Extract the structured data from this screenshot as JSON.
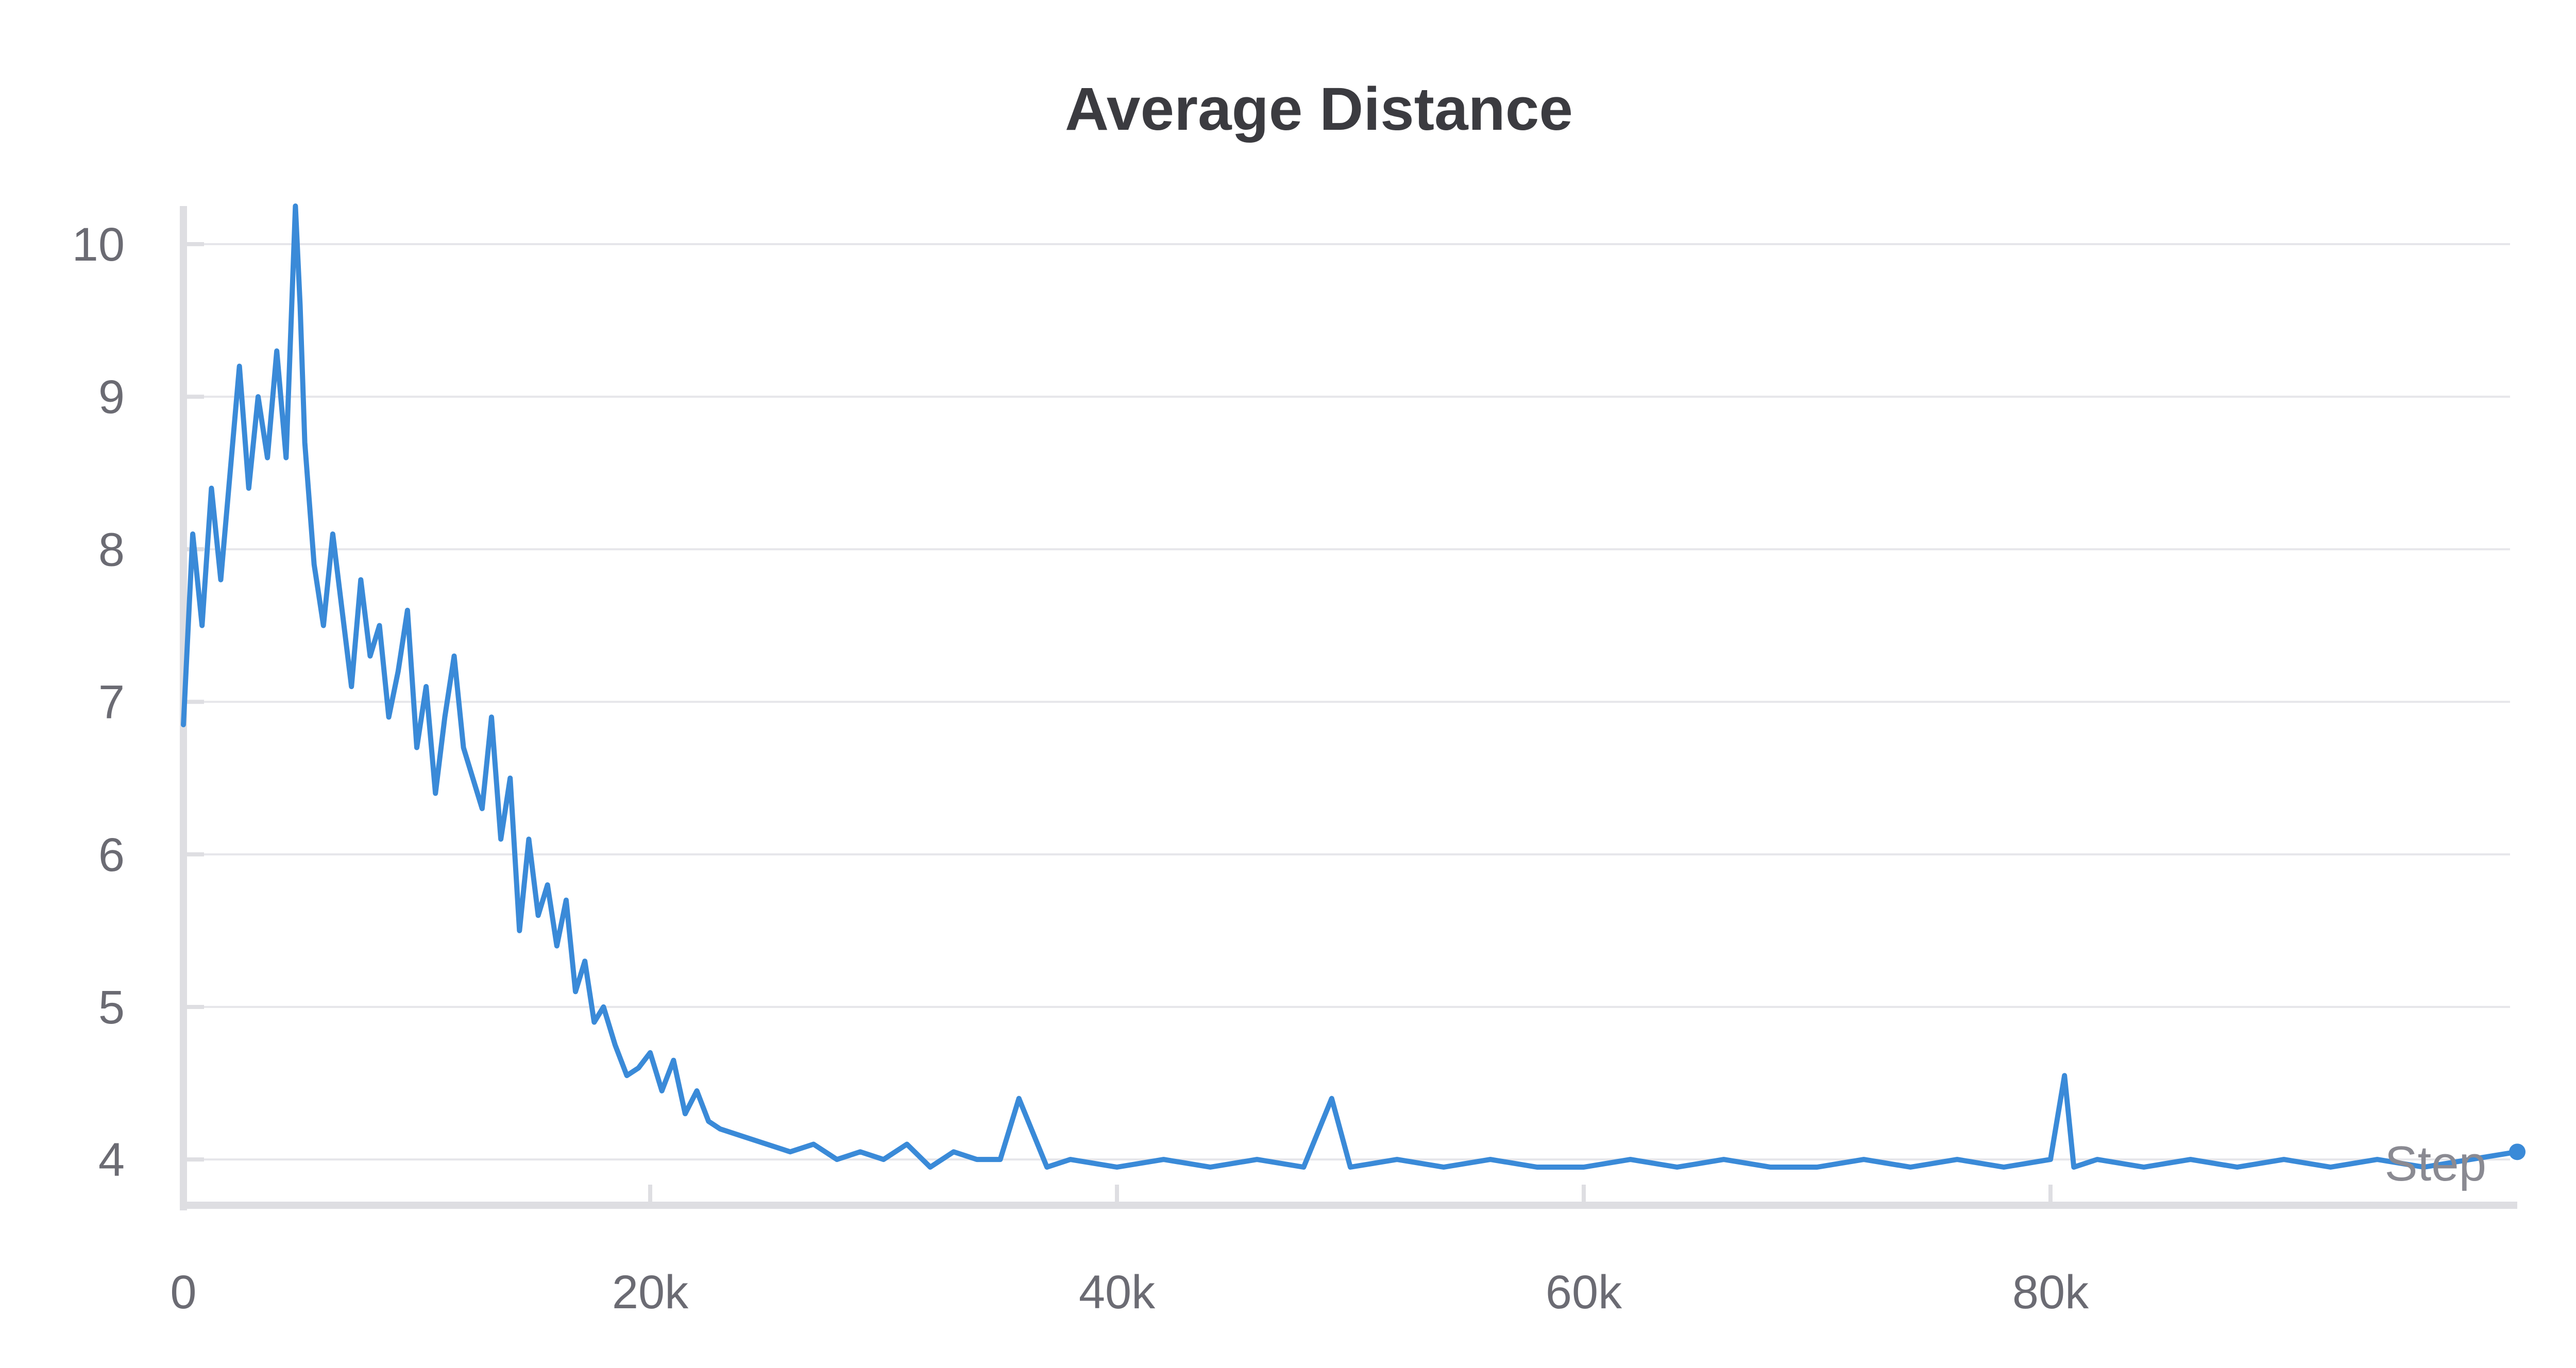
{
  "chart_data": {
    "type": "line",
    "title": "Average Distance",
    "xlabel": "Step",
    "ylabel": "",
    "xlim": [
      0,
      100000
    ],
    "ylim": [
      3.7,
      10.25
    ],
    "x_ticks": [
      0,
      20000,
      40000,
      60000,
      80000
    ],
    "x_tick_labels": [
      "0",
      "20k",
      "40k",
      "60k",
      "80k"
    ],
    "y_ticks": [
      4,
      5,
      6,
      7,
      8,
      9,
      10
    ],
    "y_tick_labels": [
      "4",
      "5",
      "6",
      "7",
      "8",
      "9",
      "10"
    ],
    "grid": true,
    "legend": "none",
    "colors": {
      "series": "#3a8ad8",
      "grid": "#e6e6ea",
      "axis": "#dedee2"
    },
    "series": [
      {
        "x": [
          0,
          400,
          800,
          1200,
          1600,
          2000,
          2400,
          2800,
          3200,
          3600,
          4000,
          4400,
          4800,
          5000,
          5200,
          5600,
          6000,
          6400,
          6800,
          7200,
          7600,
          8000,
          8400,
          8800,
          9200,
          9600,
          10000,
          10400,
          10800,
          11200,
          11600,
          12000,
          12400,
          12800,
          13200,
          13600,
          14000,
          14400,
          14800,
          15200,
          15600,
          16000,
          16400,
          16800,
          17200,
          17600,
          18000,
          18500,
          19000,
          19500,
          20000,
          20500,
          21000,
          21500,
          22000,
          22500,
          23000,
          24000,
          25000,
          26000,
          27000,
          28000,
          29000,
          30000,
          31000,
          32000,
          33000,
          34000,
          35000,
          35800,
          37000,
          38000,
          40000,
          42000,
          44000,
          46000,
          48000,
          49200,
          50000,
          52000,
          54000,
          56000,
          58000,
          60000,
          62000,
          64000,
          66000,
          68000,
          70000,
          72000,
          74000,
          76000,
          78000,
          80000,
          80600,
          81000,
          82000,
          84000,
          86000,
          88000,
          90000,
          92000,
          94000,
          96000,
          98000,
          100000
        ],
        "y": [
          6.85,
          8.1,
          7.5,
          8.4,
          7.8,
          8.5,
          9.2,
          8.4,
          9.0,
          8.6,
          9.3,
          8.6,
          10.25,
          9.6,
          8.7,
          7.9,
          7.5,
          8.1,
          7.6,
          7.1,
          7.8,
          7.3,
          7.5,
          6.9,
          7.2,
          7.6,
          6.7,
          7.1,
          6.4,
          6.9,
          7.3,
          6.7,
          6.5,
          6.3,
          6.9,
          6.1,
          6.5,
          5.5,
          6.1,
          5.6,
          5.8,
          5.4,
          5.7,
          5.1,
          5.3,
          4.9,
          5.0,
          4.75,
          4.55,
          4.6,
          4.7,
          4.45,
          4.65,
          4.3,
          4.45,
          4.25,
          4.2,
          4.15,
          4.1,
          4.05,
          4.1,
          4.0,
          4.05,
          4.0,
          4.1,
          3.95,
          4.05,
          4.0,
          4.0,
          4.4,
          3.95,
          4.0,
          3.95,
          4.0,
          3.95,
          4.0,
          3.95,
          4.4,
          3.95,
          4.0,
          3.95,
          4.0,
          3.95,
          3.95,
          4.0,
          3.95,
          4.0,
          3.95,
          3.95,
          4.0,
          3.95,
          4.0,
          3.95,
          4.0,
          4.55,
          3.95,
          4.0,
          3.95,
          4.0,
          3.95,
          4.0,
          3.95,
          4.0,
          3.95,
          4.0,
          4.05
        ]
      }
    ]
  }
}
